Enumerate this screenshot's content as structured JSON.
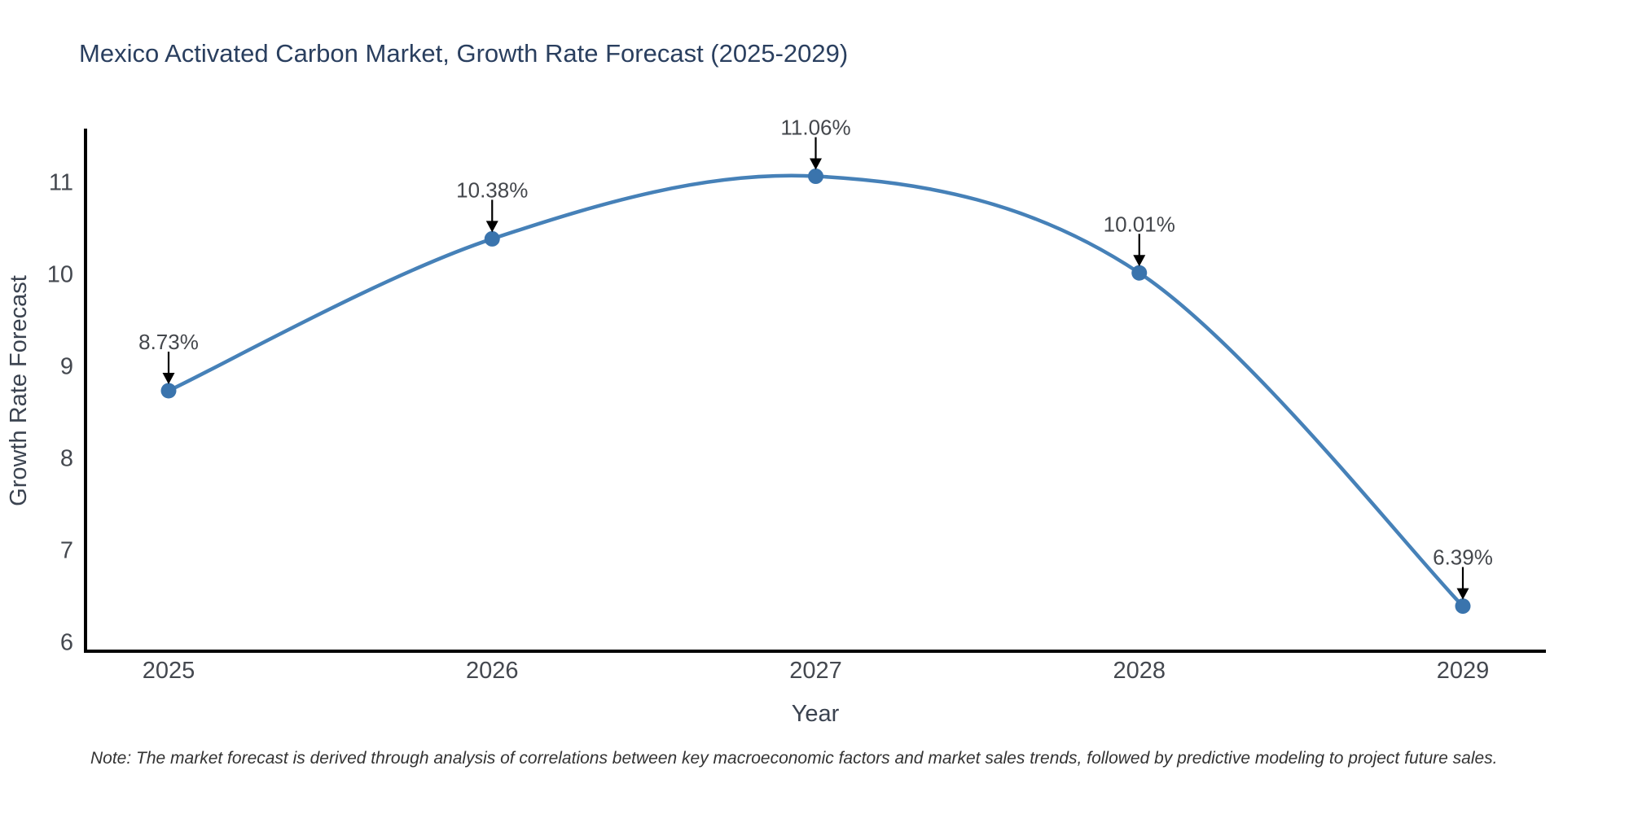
{
  "chart_data": {
    "type": "line",
    "title": "Mexico Activated Carbon Market, Growth Rate Forecast (2025-2029)",
    "xlabel": "Year",
    "ylabel": "Growth Rate Forecast",
    "categories": [
      "2025",
      "2026",
      "2027",
      "2028",
      "2029"
    ],
    "series": [
      {
        "name": "Growth Rate Forecast",
        "values": [
          8.73,
          10.38,
          11.06,
          10.01,
          6.39
        ],
        "point_labels": [
          "8.73%",
          "10.38%",
          "11.06%",
          "10.01%",
          "6.39%"
        ]
      }
    ],
    "yticks": [
      6,
      7,
      8,
      9,
      10,
      11
    ],
    "ylim": [
      5.9,
      11.56
    ],
    "grid": false,
    "legend": "none",
    "line_shape": "spline",
    "annotations_style": "value label above each point with downward black arrow",
    "colors": {
      "line": "#4681b8",
      "marker": "#3a74ad",
      "axis": "#000000",
      "tick_label": "#44484f",
      "axis_title": "#3b4350",
      "title": "#2a3f5f",
      "annotation": "#44474c",
      "arrow": "#000000"
    }
  },
  "note": "Note: The market forecast is derived through analysis of correlations between key macroeconomic factors and market sales trends, followed by predictive modeling to project future sales."
}
